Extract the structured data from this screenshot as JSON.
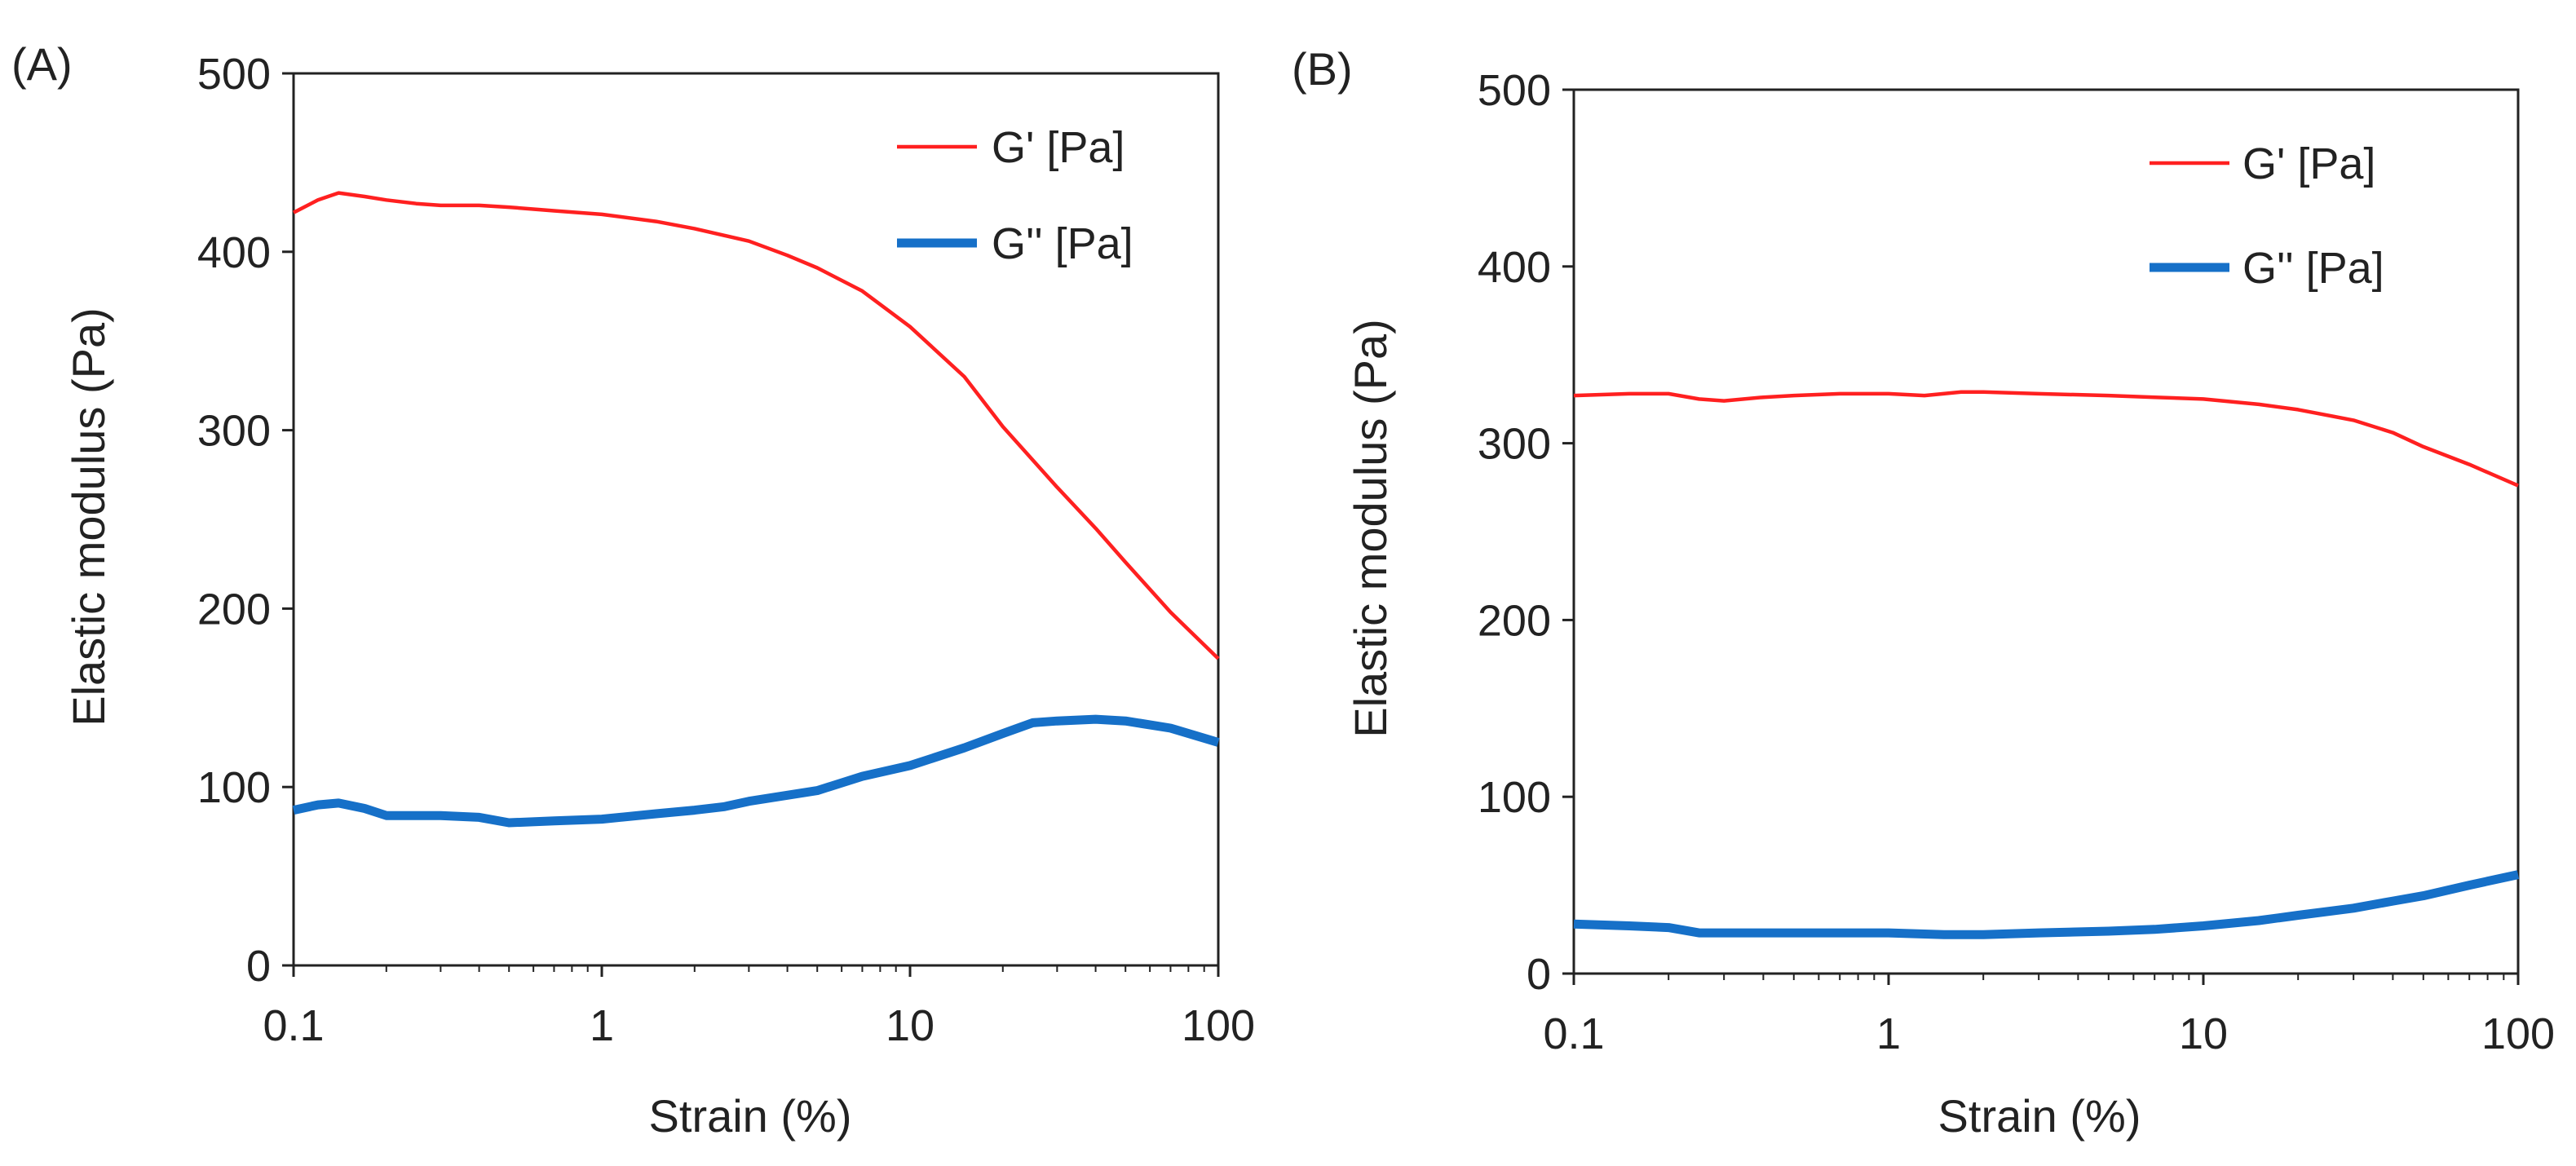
{
  "figure": {
    "background": "#ffffff",
    "axis_color": "#222222"
  },
  "chart_data": [
    {
      "type": "line",
      "panel_label": "(A)",
      "xlabel": "Strain (%)",
      "ylabel": "Elastic modulus (Pa)",
      "xscale": "log",
      "xlim": [
        0.1,
        100
      ],
      "ylim": [
        0,
        500
      ],
      "xticks": [
        0.1,
        1,
        10,
        100
      ],
      "xtick_labels": [
        "0.1",
        "1",
        "10",
        "100"
      ],
      "yticks": [
        0,
        100,
        200,
        300,
        400,
        500
      ],
      "ytick_labels": [
        "0",
        "100",
        "200",
        "300",
        "400",
        "500"
      ],
      "legend_position": "top-right",
      "grid": false,
      "series": [
        {
          "name": "G' [Pa]",
          "color": "#ff2020",
          "style": "thin",
          "points": [
            [
              0.1,
              422
            ],
            [
              0.12,
              429
            ],
            [
              0.14,
              433
            ],
            [
              0.17,
              431
            ],
            [
              0.2,
              429
            ],
            [
              0.25,
              427
            ],
            [
              0.3,
              426
            ],
            [
              0.4,
              426
            ],
            [
              0.5,
              425
            ],
            [
              0.7,
              423
            ],
            [
              1,
              421
            ],
            [
              1.5,
              417
            ],
            [
              2,
              413
            ],
            [
              3,
              406
            ],
            [
              4,
              398
            ],
            [
              5,
              391
            ],
            [
              7,
              378
            ],
            [
              10,
              358
            ],
            [
              15,
              330
            ],
            [
              20,
              302
            ],
            [
              30,
              268
            ],
            [
              40,
              245
            ],
            [
              50,
              226
            ],
            [
              70,
              198
            ],
            [
              100,
              172
            ]
          ]
        },
        {
          "name": "G'' [Pa]",
          "color": "#1670c8",
          "style": "thick",
          "points": [
            [
              0.1,
              87
            ],
            [
              0.12,
              90
            ],
            [
              0.14,
              91
            ],
            [
              0.17,
              88
            ],
            [
              0.2,
              84
            ],
            [
              0.3,
              84
            ],
            [
              0.4,
              83
            ],
            [
              0.5,
              80
            ],
            [
              0.7,
              81
            ],
            [
              1,
              82
            ],
            [
              1.5,
              85
            ],
            [
              2,
              87
            ],
            [
              2.5,
              89
            ],
            [
              3,
              92
            ],
            [
              5,
              98
            ],
            [
              7,
              106
            ],
            [
              10,
              112
            ],
            [
              15,
              122
            ],
            [
              20,
              130
            ],
            [
              25,
              136
            ],
            [
              30,
              137
            ],
            [
              40,
              138
            ],
            [
              50,
              137
            ],
            [
              70,
              133
            ],
            [
              100,
              125
            ]
          ]
        }
      ]
    },
    {
      "type": "line",
      "panel_label": "(B)",
      "xlabel": "Strain (%)",
      "ylabel": "Elastic modulus (Pa)",
      "xscale": "log",
      "xlim": [
        0.1,
        100
      ],
      "ylim": [
        0,
        500
      ],
      "xticks": [
        0.1,
        1,
        10,
        100
      ],
      "xtick_labels": [
        "0.1",
        "1",
        "10",
        "100"
      ],
      "yticks": [
        0,
        100,
        200,
        300,
        400,
        500
      ],
      "ytick_labels": [
        "0",
        "100",
        "200",
        "300",
        "400",
        "500"
      ],
      "legend_position": "top-right",
      "grid": false,
      "series": [
        {
          "name": "G' [Pa]",
          "color": "#ff2020",
          "style": "thin",
          "points": [
            [
              0.1,
              327
            ],
            [
              0.15,
              328
            ],
            [
              0.2,
              328
            ],
            [
              0.25,
              325
            ],
            [
              0.3,
              324
            ],
            [
              0.4,
              326
            ],
            [
              0.5,
              327
            ],
            [
              0.7,
              328
            ],
            [
              1,
              328
            ],
            [
              1.3,
              327
            ],
            [
              1.7,
              329
            ],
            [
              2,
              329
            ],
            [
              3,
              328
            ],
            [
              5,
              327
            ],
            [
              7,
              326
            ],
            [
              10,
              325
            ],
            [
              15,
              322
            ],
            [
              20,
              319
            ],
            [
              30,
              313
            ],
            [
              40,
              306
            ],
            [
              50,
              298
            ],
            [
              70,
              288
            ],
            [
              100,
              276
            ]
          ]
        },
        {
          "name": "G'' [Pa]",
          "color": "#1670c8",
          "style": "thick",
          "points": [
            [
              0.1,
              28
            ],
            [
              0.15,
              27
            ],
            [
              0.2,
              26
            ],
            [
              0.25,
              23
            ],
            [
              0.3,
              23
            ],
            [
              0.5,
              23
            ],
            [
              0.7,
              23
            ],
            [
              1,
              23
            ],
            [
              1.5,
              22
            ],
            [
              2,
              22
            ],
            [
              3,
              23
            ],
            [
              5,
              24
            ],
            [
              7,
              25
            ],
            [
              10,
              27
            ],
            [
              15,
              30
            ],
            [
              20,
              33
            ],
            [
              30,
              37
            ],
            [
              40,
              41
            ],
            [
              50,
              44
            ],
            [
              70,
              50
            ],
            [
              100,
              56
            ]
          ]
        }
      ]
    }
  ]
}
